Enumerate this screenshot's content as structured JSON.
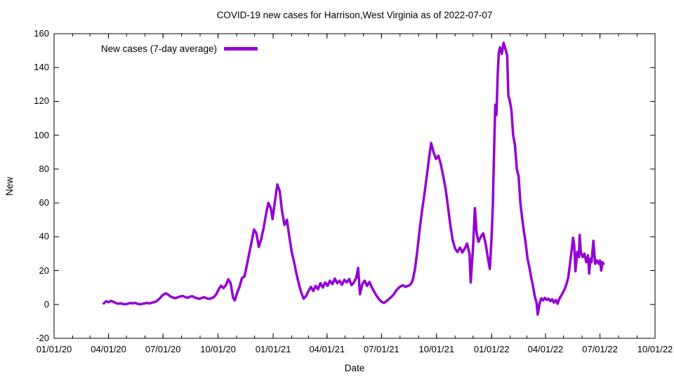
{
  "title": "COVID-19 new cases for Harrison,West Virginia as of 2022-07-07",
  "legend": {
    "label": "New cases (7-day average)",
    "color": "#9400D3",
    "position": "top-left-inside"
  },
  "axes": {
    "x": {
      "label": "Date",
      "range": [
        "2020-01-01",
        "2022-10-01"
      ],
      "minor_tick_interval": "monthly",
      "ticks": [
        {
          "label": "01/01/20",
          "date": "2020-01-01"
        },
        {
          "label": "04/01/20",
          "date": "2020-04-01"
        },
        {
          "label": "07/01/20",
          "date": "2020-07-01"
        },
        {
          "label": "10/01/20",
          "date": "2020-10-01"
        },
        {
          "label": "01/01/21",
          "date": "2021-01-01"
        },
        {
          "label": "04/01/21",
          "date": "2021-04-01"
        },
        {
          "label": "07/01/21",
          "date": "2021-07-01"
        },
        {
          "label": "10/01/21",
          "date": "2021-10-01"
        },
        {
          "label": "01/01/22",
          "date": "2022-01-01"
        },
        {
          "label": "04/01/22",
          "date": "2022-04-01"
        },
        {
          "label": "07/01/22",
          "date": "2022-07-01"
        },
        {
          "label": "10/01/22",
          "date": "2022-10-01"
        }
      ]
    },
    "y": {
      "label": "New",
      "range": [
        -20,
        160
      ],
      "tick_step": 20,
      "ticks": [
        -20,
        0,
        20,
        40,
        60,
        80,
        100,
        120,
        140,
        160
      ]
    }
  },
  "chart_data": {
    "type": "line",
    "title": "COVID-19 new cases for Harrison,West Virginia as of 2022-07-07",
    "xlabel": "Date",
    "ylabel": "New",
    "xlim": [
      "2020-01-01",
      "2022-10-01"
    ],
    "ylim": [
      -20,
      160
    ],
    "grid": false,
    "legend_position": "top-left-inside",
    "series": [
      {
        "name": "New cases (7-day average)",
        "color": "#9400D3",
        "line_width": 3.5,
        "points": [
          [
            "2020-03-24",
            0.6
          ],
          [
            "2020-03-28",
            1.9
          ],
          [
            "2020-04-01",
            1.3
          ],
          [
            "2020-04-05",
            2.1
          ],
          [
            "2020-04-09",
            1.6
          ],
          [
            "2020-04-13",
            0.9
          ],
          [
            "2020-04-17",
            0.4
          ],
          [
            "2020-04-21",
            0.7
          ],
          [
            "2020-04-25",
            0.3
          ],
          [
            "2020-04-29",
            0.1
          ],
          [
            "2020-05-03",
            0.4
          ],
          [
            "2020-05-07",
            0.9
          ],
          [
            "2020-05-11",
            0.6
          ],
          [
            "2020-05-15",
            1.0
          ],
          [
            "2020-05-19",
            0.4
          ],
          [
            "2020-05-23",
            0.1
          ],
          [
            "2020-05-27",
            0.3
          ],
          [
            "2020-05-31",
            0.6
          ],
          [
            "2020-06-04",
            0.9
          ],
          [
            "2020-06-08",
            0.6
          ],
          [
            "2020-06-12",
            1.0
          ],
          [
            "2020-06-16",
            1.3
          ],
          [
            "2020-06-20",
            1.9
          ],
          [
            "2020-06-24",
            3.0
          ],
          [
            "2020-06-28",
            4.6
          ],
          [
            "2020-07-02",
            5.9
          ],
          [
            "2020-07-06",
            6.6
          ],
          [
            "2020-07-10",
            5.7
          ],
          [
            "2020-07-14",
            4.6
          ],
          [
            "2020-07-18",
            4.0
          ],
          [
            "2020-07-22",
            3.7
          ],
          [
            "2020-07-26",
            4.3
          ],
          [
            "2020-07-30",
            4.7
          ],
          [
            "2020-08-03",
            5.0
          ],
          [
            "2020-08-07",
            4.4
          ],
          [
            "2020-08-11",
            3.9
          ],
          [
            "2020-08-15",
            4.6
          ],
          [
            "2020-08-19",
            4.9
          ],
          [
            "2020-08-23",
            4.1
          ],
          [
            "2020-08-27",
            3.7
          ],
          [
            "2020-08-31",
            3.3
          ],
          [
            "2020-09-04",
            3.9
          ],
          [
            "2020-09-08",
            4.3
          ],
          [
            "2020-09-12",
            3.6
          ],
          [
            "2020-09-16",
            3.3
          ],
          [
            "2020-09-20",
            3.7
          ],
          [
            "2020-09-24",
            4.3
          ],
          [
            "2020-09-28",
            6.0
          ],
          [
            "2020-10-02",
            9.0
          ],
          [
            "2020-10-06",
            11.1
          ],
          [
            "2020-10-10",
            9.6
          ],
          [
            "2020-10-14",
            11.4
          ],
          [
            "2020-10-18",
            14.9
          ],
          [
            "2020-10-22",
            12.6
          ],
          [
            "2020-10-26",
            4.0
          ],
          [
            "2020-10-29",
            2.4
          ],
          [
            "2020-11-02",
            7.0
          ],
          [
            "2020-11-06",
            10.6
          ],
          [
            "2020-11-10",
            15.7
          ],
          [
            "2020-11-14",
            16.4
          ],
          [
            "2020-11-18",
            22.9
          ],
          [
            "2020-11-22",
            30.0
          ],
          [
            "2020-11-26",
            37.1
          ],
          [
            "2020-11-30",
            44.3
          ],
          [
            "2020-12-04",
            42.0
          ],
          [
            "2020-12-08",
            34.0
          ],
          [
            "2020-12-12",
            38.6
          ],
          [
            "2020-12-16",
            45.0
          ],
          [
            "2020-12-20",
            53.0
          ],
          [
            "2020-12-24",
            60.0
          ],
          [
            "2020-12-28",
            57.1
          ],
          [
            "2020-12-31",
            50.4
          ],
          [
            "2021-01-04",
            61.0
          ],
          [
            "2021-01-08",
            70.9
          ],
          [
            "2021-01-12",
            67.0
          ],
          [
            "2021-01-16",
            55.0
          ],
          [
            "2021-01-20",
            47.0
          ],
          [
            "2021-01-24",
            50.0
          ],
          [
            "2021-01-28",
            40.0
          ],
          [
            "2021-02-01",
            31.0
          ],
          [
            "2021-02-05",
            25.0
          ],
          [
            "2021-02-09",
            18.0
          ],
          [
            "2021-02-13",
            12.0
          ],
          [
            "2021-02-17",
            7.0
          ],
          [
            "2021-02-21",
            3.4
          ],
          [
            "2021-02-25",
            5.0
          ],
          [
            "2021-03-01",
            8.0
          ],
          [
            "2021-03-05",
            10.4
          ],
          [
            "2021-03-09",
            8.0
          ],
          [
            "2021-03-13",
            11.0
          ],
          [
            "2021-03-17",
            9.0
          ],
          [
            "2021-03-21",
            12.6
          ],
          [
            "2021-03-25",
            10.0
          ],
          [
            "2021-03-29",
            13.0
          ],
          [
            "2021-04-02",
            11.0
          ],
          [
            "2021-04-06",
            14.0
          ],
          [
            "2021-04-10",
            12.0
          ],
          [
            "2021-04-14",
            15.3
          ],
          [
            "2021-04-18",
            12.6
          ],
          [
            "2021-04-22",
            14.0
          ],
          [
            "2021-04-26",
            11.6
          ],
          [
            "2021-04-30",
            14.6
          ],
          [
            "2021-05-04",
            13.0
          ],
          [
            "2021-05-08",
            15.0
          ],
          [
            "2021-05-12",
            11.4
          ],
          [
            "2021-05-16",
            13.0
          ],
          [
            "2021-05-20",
            16.0
          ],
          [
            "2021-05-23",
            21.6
          ],
          [
            "2021-05-26",
            6.0
          ],
          [
            "2021-05-30",
            12.0
          ],
          [
            "2021-06-03",
            14.0
          ],
          [
            "2021-06-07",
            11.0
          ],
          [
            "2021-06-11",
            13.3
          ],
          [
            "2021-06-15",
            10.0
          ],
          [
            "2021-06-19",
            7.4
          ],
          [
            "2021-06-23",
            5.0
          ],
          [
            "2021-06-27",
            3.0
          ],
          [
            "2021-07-01",
            1.6
          ],
          [
            "2021-07-05",
            0.9
          ],
          [
            "2021-07-09",
            1.9
          ],
          [
            "2021-07-13",
            3.0
          ],
          [
            "2021-07-17",
            4.3
          ],
          [
            "2021-07-21",
            5.7
          ],
          [
            "2021-07-25",
            7.9
          ],
          [
            "2021-07-29",
            9.6
          ],
          [
            "2021-08-02",
            10.7
          ],
          [
            "2021-08-06",
            11.3
          ],
          [
            "2021-08-10",
            10.4
          ],
          [
            "2021-08-14",
            11.0
          ],
          [
            "2021-08-18",
            11.6
          ],
          [
            "2021-08-22",
            14.0
          ],
          [
            "2021-08-26",
            21.0
          ],
          [
            "2021-08-30",
            32.0
          ],
          [
            "2021-09-03",
            45.0
          ],
          [
            "2021-09-07",
            56.0
          ],
          [
            "2021-09-11",
            66.0
          ],
          [
            "2021-09-15",
            77.0
          ],
          [
            "2021-09-19",
            88.0
          ],
          [
            "2021-09-22",
            95.4
          ],
          [
            "2021-09-26",
            90.0
          ],
          [
            "2021-09-30",
            86.0
          ],
          [
            "2021-10-04",
            87.9
          ],
          [
            "2021-10-08",
            83.0
          ],
          [
            "2021-10-12",
            76.0
          ],
          [
            "2021-10-16",
            68.6
          ],
          [
            "2021-10-20",
            58.0
          ],
          [
            "2021-10-24",
            47.0
          ],
          [
            "2021-10-28",
            38.0
          ],
          [
            "2021-11-01",
            33.0
          ],
          [
            "2021-11-05",
            31.0
          ],
          [
            "2021-11-09",
            33.6
          ],
          [
            "2021-11-13",
            30.7
          ],
          [
            "2021-11-17",
            33.0
          ],
          [
            "2021-11-21",
            36.0
          ],
          [
            "2021-11-25",
            30.0
          ],
          [
            "2021-11-27",
            13.0
          ],
          [
            "2021-12-01",
            34.0
          ],
          [
            "2021-12-04",
            56.9
          ],
          [
            "2021-12-07",
            42.0
          ],
          [
            "2021-12-10",
            37.0
          ],
          [
            "2021-12-14",
            40.0
          ],
          [
            "2021-12-18",
            42.0
          ],
          [
            "2021-12-22",
            36.0
          ],
          [
            "2021-12-26",
            27.0
          ],
          [
            "2021-12-29",
            21.0
          ],
          [
            "2022-01-01",
            40.0
          ],
          [
            "2022-01-03",
            58.0
          ],
          [
            "2022-01-05",
            90.0
          ],
          [
            "2022-01-07",
            118.0
          ],
          [
            "2022-01-09",
            112.0
          ],
          [
            "2022-01-11",
            135.0
          ],
          [
            "2022-01-13",
            149.0
          ],
          [
            "2022-01-15",
            152.0
          ],
          [
            "2022-01-18",
            148.0
          ],
          [
            "2022-01-21",
            154.6
          ],
          [
            "2022-01-24",
            151.0
          ],
          [
            "2022-01-27",
            147.0
          ],
          [
            "2022-01-29",
            123.0
          ],
          [
            "2022-01-31",
            121.0
          ],
          [
            "2022-02-03",
            115.0
          ],
          [
            "2022-02-06",
            100.0
          ],
          [
            "2022-02-09",
            94.0
          ],
          [
            "2022-02-12",
            80.0
          ],
          [
            "2022-02-15",
            76.0
          ],
          [
            "2022-02-18",
            60.0
          ],
          [
            "2022-02-21",
            51.0
          ],
          [
            "2022-02-24",
            43.0
          ],
          [
            "2022-02-27",
            36.0
          ],
          [
            "2022-03-02",
            27.0
          ],
          [
            "2022-03-05",
            22.0
          ],
          [
            "2022-03-08",
            16.0
          ],
          [
            "2022-03-11",
            11.0
          ],
          [
            "2022-03-14",
            5.0
          ],
          [
            "2022-03-17",
            1.0
          ],
          [
            "2022-03-19",
            -6.0
          ],
          [
            "2022-03-22",
            0.6
          ],
          [
            "2022-03-25",
            3.6
          ],
          [
            "2022-03-28",
            2.4
          ],
          [
            "2022-03-31",
            3.9
          ],
          [
            "2022-04-03",
            2.7
          ],
          [
            "2022-04-06",
            3.4
          ],
          [
            "2022-04-09",
            2.0
          ],
          [
            "2022-04-12",
            3.1
          ],
          [
            "2022-04-15",
            1.1
          ],
          [
            "2022-04-18",
            2.6
          ],
          [
            "2022-04-21",
            0.4
          ],
          [
            "2022-04-24",
            3.3
          ],
          [
            "2022-04-27",
            5.0
          ],
          [
            "2022-04-30",
            7.0
          ],
          [
            "2022-05-03",
            9.0
          ],
          [
            "2022-05-06",
            12.0
          ],
          [
            "2022-05-09",
            16.0
          ],
          [
            "2022-05-12",
            24.0
          ],
          [
            "2022-05-15",
            33.0
          ],
          [
            "2022-05-17",
            39.4
          ],
          [
            "2022-05-19",
            35.0
          ],
          [
            "2022-05-21",
            19.6
          ],
          [
            "2022-05-24",
            31.0
          ],
          [
            "2022-05-27",
            28.0
          ],
          [
            "2022-05-28",
            41.0
          ],
          [
            "2022-05-30",
            31.0
          ],
          [
            "2022-06-02",
            28.0
          ],
          [
            "2022-06-05",
            30.0
          ],
          [
            "2022-06-08",
            25.0
          ],
          [
            "2022-06-11",
            29.0
          ],
          [
            "2022-06-13",
            18.3
          ],
          [
            "2022-06-15",
            27.0
          ],
          [
            "2022-06-17",
            25.0
          ],
          [
            "2022-06-20",
            37.6
          ],
          [
            "2022-06-23",
            24.0
          ],
          [
            "2022-06-26",
            26.0
          ],
          [
            "2022-06-29",
            24.0
          ],
          [
            "2022-07-01",
            26.0
          ],
          [
            "2022-07-03",
            20.0
          ],
          [
            "2022-07-05",
            25.0
          ],
          [
            "2022-07-07",
            24.0
          ]
        ]
      }
    ]
  }
}
